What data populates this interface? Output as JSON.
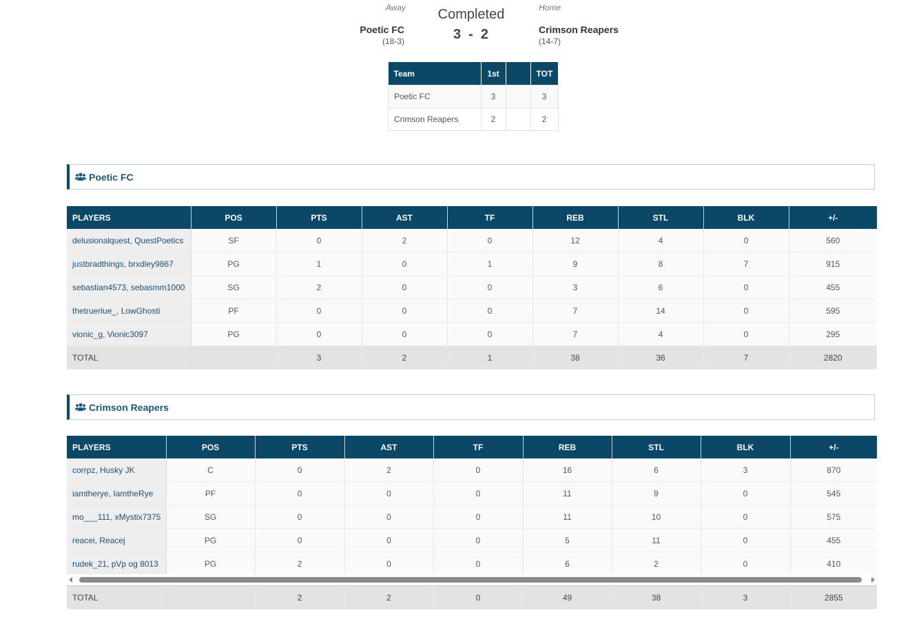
{
  "scoreboard": {
    "away": {
      "label": "Away",
      "name": "Poetic FC",
      "record": "(18-3)"
    },
    "home": {
      "label": "Home",
      "name": "Crimson Reapers",
      "record": "(14-7)"
    },
    "status": "Completed",
    "away_score": "3",
    "home_score": "2",
    "separator": "-"
  },
  "linescore": {
    "headers": [
      "Team",
      "1st",
      "",
      "TOT"
    ],
    "rows": [
      {
        "team": "Poetic FC",
        "p1": "3",
        "p2": "",
        "tot": "3"
      },
      {
        "team": "Crimson Reapers",
        "p1": "2",
        "p2": "",
        "tot": "2"
      }
    ]
  },
  "box_headers": [
    "PLAYERS",
    "POS",
    "PTS",
    "AST",
    "TF",
    "REB",
    "STL",
    "BLK",
    "+/-"
  ],
  "teams": [
    {
      "title": "Poetic FC",
      "players": [
        {
          "name": "delusionalquest, QuestPoetics",
          "pos": "SF",
          "pts": "0",
          "ast": "2",
          "tf": "0",
          "reb": "12",
          "stl": "4",
          "blk": "0",
          "pm": "560"
        },
        {
          "name": "justbradthings, brxdley9867",
          "pos": "PG",
          "pts": "1",
          "ast": "0",
          "tf": "1",
          "reb": "9",
          "stl": "8",
          "blk": "7",
          "pm": "915"
        },
        {
          "name": "sebastian4573, sebasmm1000",
          "pos": "SG",
          "pts": "2",
          "ast": "0",
          "tf": "0",
          "reb": "3",
          "stl": "6",
          "blk": "0",
          "pm": "455"
        },
        {
          "name": "thetruerlue_, LowGhosti",
          "pos": "PF",
          "pts": "0",
          "ast": "0",
          "tf": "0",
          "reb": "7",
          "stl": "14",
          "blk": "0",
          "pm": "595"
        },
        {
          "name": "vionic_g, Vionic3097",
          "pos": "PG",
          "pts": "0",
          "ast": "0",
          "tf": "0",
          "reb": "7",
          "stl": "4",
          "blk": "0",
          "pm": "295"
        }
      ],
      "total": {
        "label": "TOTAL",
        "pos": "",
        "pts": "3",
        "ast": "2",
        "tf": "1",
        "reb": "38",
        "stl": "36",
        "blk": "7",
        "pm": "2820"
      }
    },
    {
      "title": "Crimson Reapers",
      "players": [
        {
          "name": "corrpz, Husky JK",
          "pos": "C",
          "pts": "0",
          "ast": "2",
          "tf": "0",
          "reb": "16",
          "stl": "6",
          "blk": "3",
          "pm": "870"
        },
        {
          "name": "iamtherye, IamtheRye",
          "pos": "PF",
          "pts": "0",
          "ast": "0",
          "tf": "0",
          "reb": "11",
          "stl": "9",
          "blk": "0",
          "pm": "545"
        },
        {
          "name": "mo___111, xMystix7375",
          "pos": "SG",
          "pts": "0",
          "ast": "0",
          "tf": "0",
          "reb": "11",
          "stl": "10",
          "blk": "0",
          "pm": "575"
        },
        {
          "name": "reacei, Reacej",
          "pos": "PG",
          "pts": "0",
          "ast": "0",
          "tf": "0",
          "reb": "5",
          "stl": "11",
          "blk": "0",
          "pm": "455"
        },
        {
          "name": "rudek_21, pVp og 8013",
          "pos": "PG",
          "pts": "2",
          "ast": "0",
          "tf": "0",
          "reb": "6",
          "stl": "2",
          "blk": "0",
          "pm": "410"
        }
      ],
      "total": {
        "label": "TOTAL",
        "pos": "",
        "pts": "2",
        "ast": "2",
        "tf": "0",
        "reb": "49",
        "stl": "38",
        "blk": "3",
        "pm": "2855"
      }
    }
  ],
  "icons": {
    "team_section": "users-group-icon"
  },
  "colors": {
    "header_bg": "#0b4868",
    "player_link": "#1d4f74",
    "section_border": "#b9d0dc"
  }
}
